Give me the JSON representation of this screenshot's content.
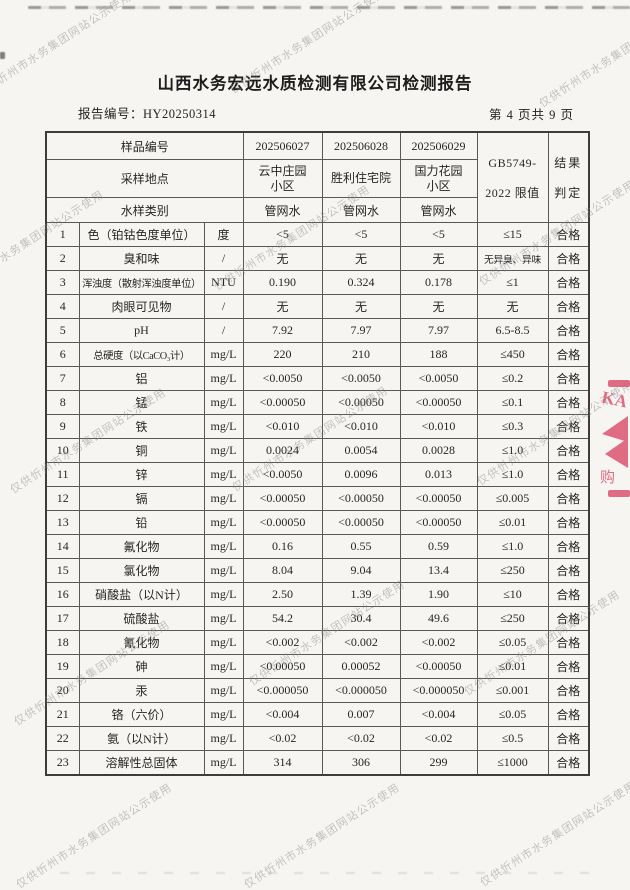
{
  "report": {
    "title": "山西水务宏远水质检测有限公司检测报告",
    "report_no": "报告编号：HY20250314",
    "page_indicator": "第 4 页共 9 页"
  },
  "watermark": {
    "text": "仅供忻州市水务集团网站公示使用",
    "color": "#8a8a8a",
    "positions": [
      [
        -18,
        102
      ],
      [
        236,
        98
      ],
      [
        545,
        112
      ],
      [
        -46,
        300
      ],
      [
        220,
        295
      ],
      [
        485,
        290
      ],
      [
        16,
        498
      ],
      [
        238,
        496
      ],
      [
        483,
        490
      ],
      [
        20,
        730
      ],
      [
        255,
        690
      ],
      [
        470,
        700
      ],
      [
        22,
        893
      ],
      [
        250,
        893
      ],
      [
        486,
        891
      ]
    ]
  },
  "stamp": {
    "color": "#dd5570",
    "letters": "KA",
    "character": "购"
  },
  "table": {
    "header": {
      "sample_id_label": "样品编号",
      "location_label": "采样地点",
      "water_type_label": "水样类别",
      "sample_ids": [
        "202506027",
        "202506028",
        "202506029"
      ],
      "locations": [
        [
          "云中庄园",
          "小区"
        ],
        [
          "胜利住宅院"
        ],
        [
          "国力花园",
          "小区"
        ]
      ],
      "water_types": [
        "管网水",
        "管网水",
        "管网水"
      ],
      "limit_lines": [
        "GB5749-",
        "2022 限值"
      ],
      "result_lines": [
        "结果",
        "判定"
      ]
    },
    "rows": [
      {
        "no": "1",
        "name": "色（铂钴色度单位）",
        "unit": "度",
        "v1": "<5",
        "v2": "<5",
        "v3": "<5",
        "limit": "≤15",
        "result": "合格"
      },
      {
        "no": "2",
        "name": "臭和味",
        "unit": "/",
        "v1": "无",
        "v2": "无",
        "v3": "无",
        "limit": "无异臭、异味",
        "result": "合格"
      },
      {
        "no": "3",
        "name": "浑浊度（散射浑浊度单位）",
        "unit": "NTU",
        "v1": "0.190",
        "v2": "0.324",
        "v3": "0.178",
        "limit": "≤1",
        "result": "合格"
      },
      {
        "no": "4",
        "name": "肉眼可见物",
        "unit": "/",
        "v1": "无",
        "v2": "无",
        "v3": "无",
        "limit": "无",
        "result": "合格"
      },
      {
        "no": "5",
        "name": "pH",
        "unit": "/",
        "v1": "7.92",
        "v2": "7.97",
        "v3": "7.97",
        "limit": "6.5-8.5",
        "result": "合格"
      },
      {
        "no": "6",
        "name": "总硬度（以CaCO₃计）",
        "unit": "mg/L",
        "v1": "220",
        "v2": "210",
        "v3": "188",
        "limit": "≤450",
        "result": "合格"
      },
      {
        "no": "7",
        "name": "铝",
        "unit": "mg/L",
        "v1": "<0.0050",
        "v2": "<0.0050",
        "v3": "<0.0050",
        "limit": "≤0.2",
        "result": "合格"
      },
      {
        "no": "8",
        "name": "锰",
        "unit": "mg/L",
        "v1": "<0.00050",
        "v2": "<0.00050",
        "v3": "<0.00050",
        "limit": "≤0.1",
        "result": "合格"
      },
      {
        "no": "9",
        "name": "铁",
        "unit": "mg/L",
        "v1": "<0.010",
        "v2": "<0.010",
        "v3": "<0.010",
        "limit": "≤0.3",
        "result": "合格"
      },
      {
        "no": "10",
        "name": "铜",
        "unit": "mg/L",
        "v1": "0.0024",
        "v2": "0.0054",
        "v3": "0.0028",
        "limit": "≤1.0",
        "result": "合格"
      },
      {
        "no": "11",
        "name": "锌",
        "unit": "mg/L",
        "v1": "<0.0050",
        "v2": "0.0096",
        "v3": "0.013",
        "limit": "≤1.0",
        "result": "合格"
      },
      {
        "no": "12",
        "name": "镉",
        "unit": "mg/L",
        "v1": "<0.00050",
        "v2": "<0.00050",
        "v3": "<0.00050",
        "limit": "≤0.005",
        "result": "合格"
      },
      {
        "no": "13",
        "name": "铅",
        "unit": "mg/L",
        "v1": "<0.00050",
        "v2": "<0.00050",
        "v3": "<0.00050",
        "limit": "≤0.01",
        "result": "合格"
      },
      {
        "no": "14",
        "name": "氟化物",
        "unit": "mg/L",
        "v1": "0.16",
        "v2": "0.55",
        "v3": "0.59",
        "limit": "≤1.0",
        "result": "合格"
      },
      {
        "no": "15",
        "name": "氯化物",
        "unit": "mg/L",
        "v1": "8.04",
        "v2": "9.04",
        "v3": "13.4",
        "limit": "≤250",
        "result": "合格"
      },
      {
        "no": "16",
        "name": "硝酸盐（以N计）",
        "unit": "mg/L",
        "v1": "2.50",
        "v2": "1.39",
        "v3": "1.90",
        "limit": "≤10",
        "result": "合格"
      },
      {
        "no": "17",
        "name": "硫酸盐",
        "unit": "mg/L",
        "v1": "54.2",
        "v2": "30.4",
        "v3": "49.6",
        "limit": "≤250",
        "result": "合格"
      },
      {
        "no": "18",
        "name": "氰化物",
        "unit": "mg/L",
        "v1": "<0.002",
        "v2": "<0.002",
        "v3": "<0.002",
        "limit": "≤0.05",
        "result": "合格"
      },
      {
        "no": "19",
        "name": "砷",
        "unit": "mg/L",
        "v1": "<0.00050",
        "v2": "0.00052",
        "v3": "<0.00050",
        "limit": "≤0.01",
        "result": "合格"
      },
      {
        "no": "20",
        "name": "汞",
        "unit": "mg/L",
        "v1": "<0.000050",
        "v2": "<0.000050",
        "v3": "<0.000050",
        "limit": "≤0.001",
        "result": "合格"
      },
      {
        "no": "21",
        "name": "铬（六价）",
        "unit": "mg/L",
        "v1": "<0.004",
        "v2": "0.007",
        "v3": "<0.004",
        "limit": "≤0.05",
        "result": "合格"
      },
      {
        "no": "22",
        "name": "氨（以N计）",
        "unit": "mg/L",
        "v1": "<0.02",
        "v2": "<0.02",
        "v3": "<0.02",
        "limit": "≤0.5",
        "result": "合格"
      },
      {
        "no": "23",
        "name": "溶解性总固体",
        "unit": "mg/L",
        "v1": "314",
        "v2": "306",
        "v3": "299",
        "limit": "≤1000",
        "result": "合格"
      }
    ]
  }
}
